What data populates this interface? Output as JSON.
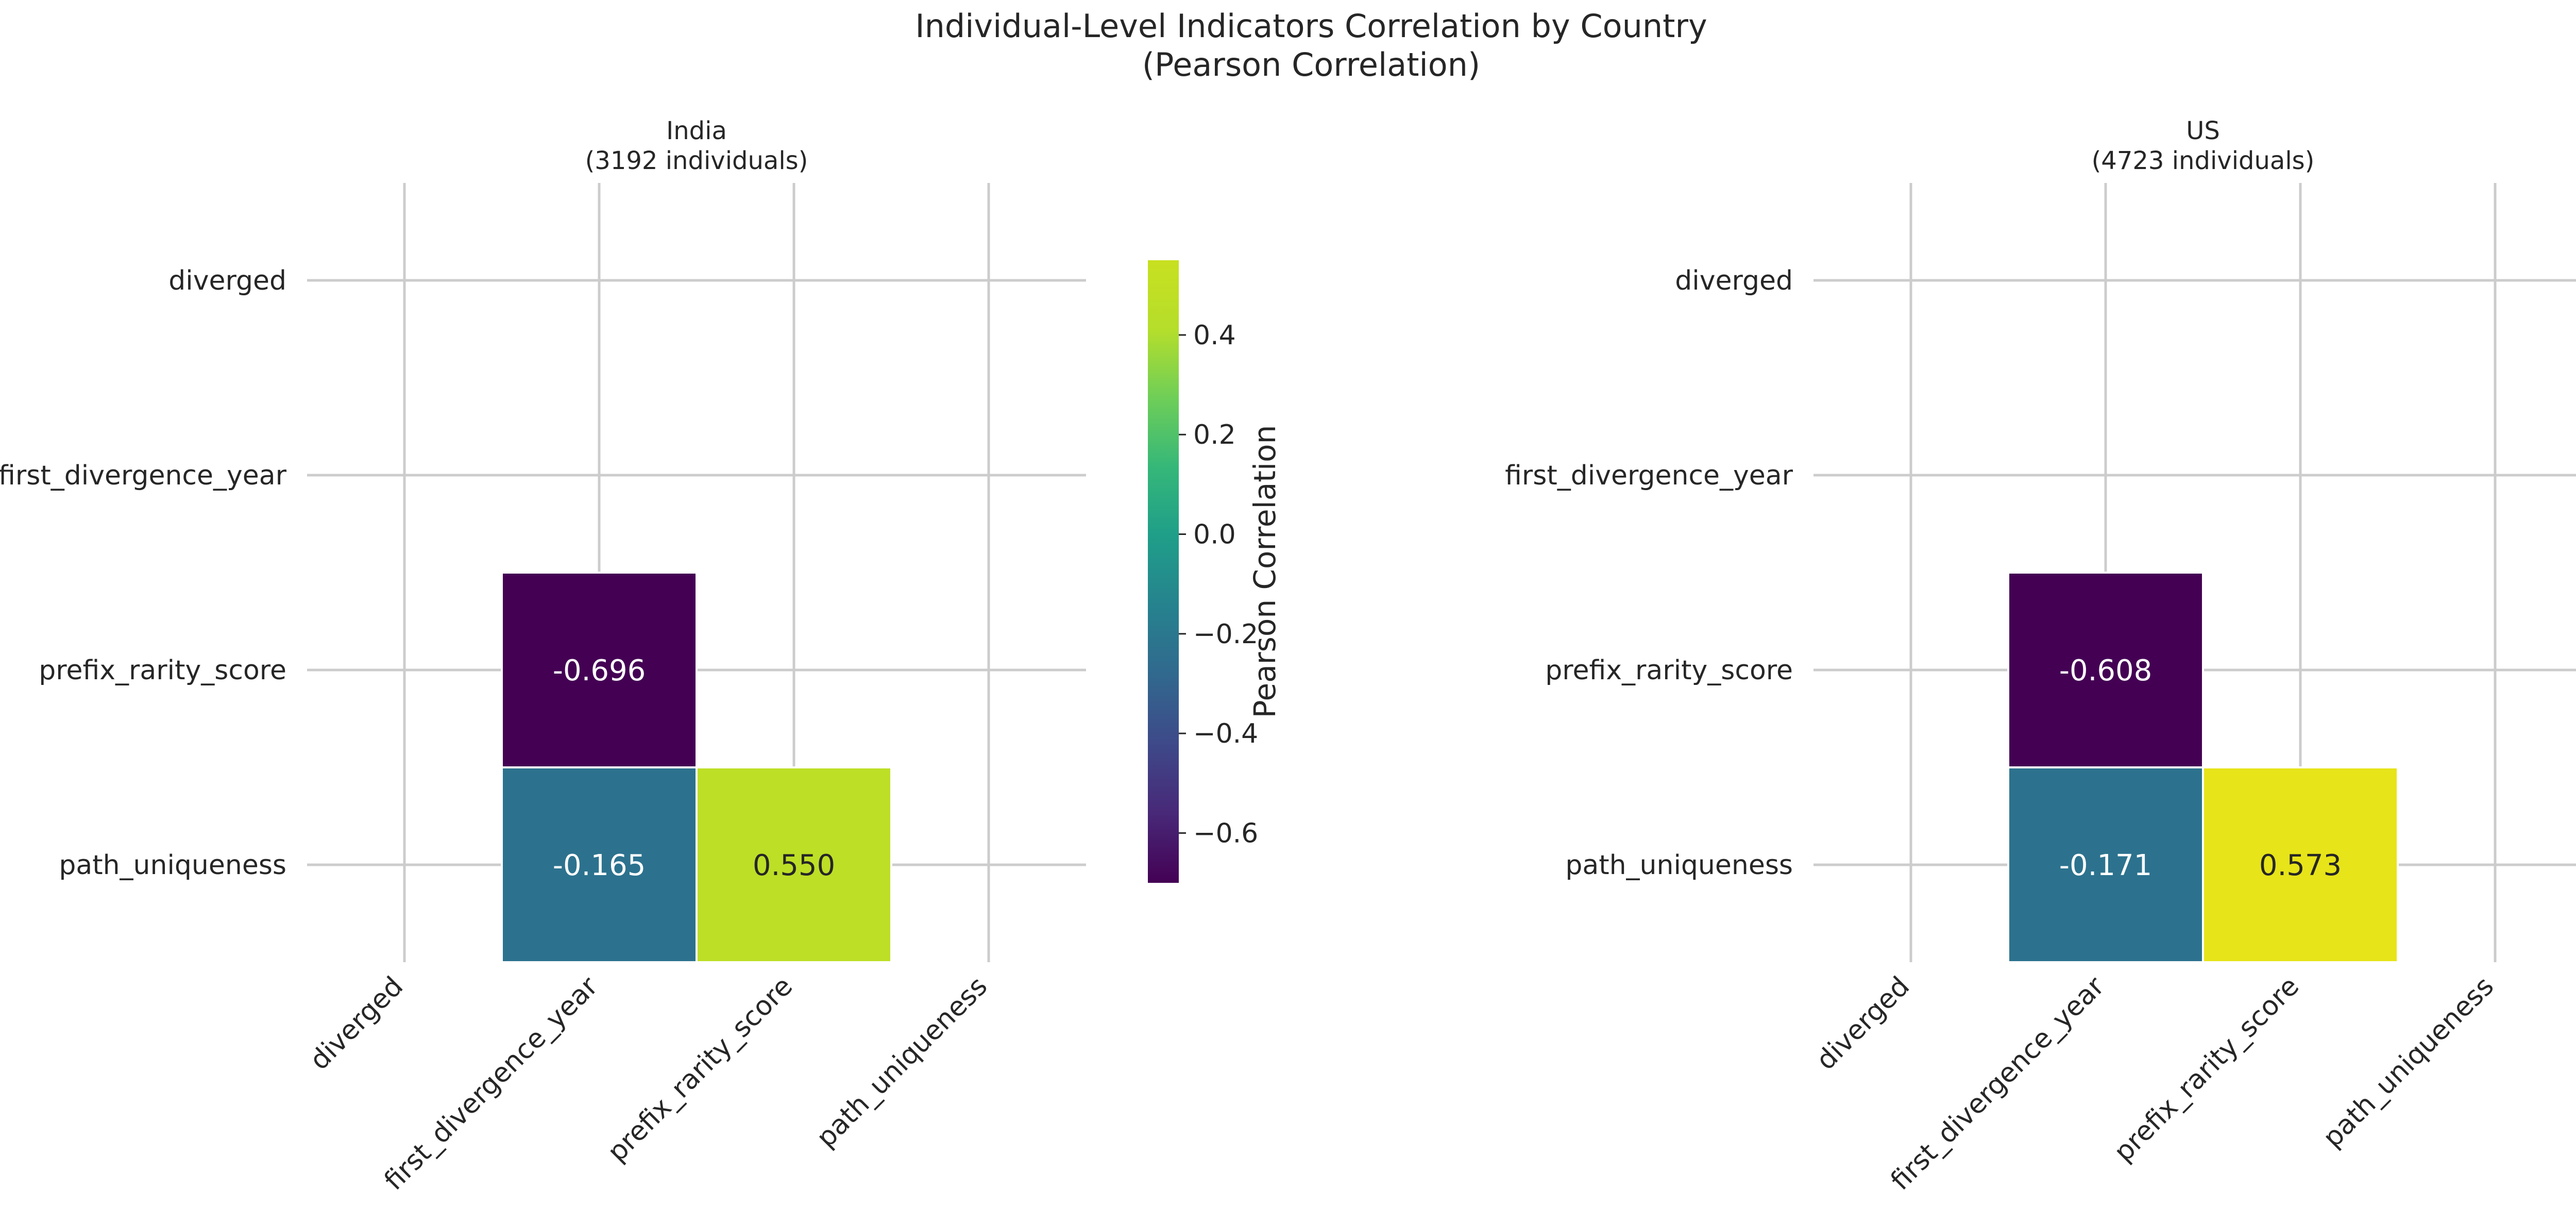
{
  "figure": {
    "title_line1": "Individual-Level Indicators Correlation by Country",
    "title_line2": "(Pearson Correlation)"
  },
  "colorbar": {
    "label": "Pearson Correlation",
    "min": -0.7,
    "max": 0.55,
    "ticks": [
      0.4,
      0.2,
      0.0,
      -0.2,
      -0.4,
      -0.6
    ],
    "tick_labels": [
      "0.4",
      "0.2",
      "0.0",
      "−0.2",
      "−0.4",
      "−0.6"
    ],
    "colormap": "viridis"
  },
  "chart_data": [
    {
      "type": "heatmap",
      "title_line1": "India",
      "title_line2": "(3192 individuals)",
      "variables": [
        "diverged",
        "first_divergence_year",
        "prefix_rarity_score",
        "path_uniqueness"
      ],
      "mask": "upper-triangle-and-diagonal",
      "grid": true,
      "cells": [
        {
          "row": "prefix_rarity_score",
          "col": "first_divergence_year",
          "value": -0.696,
          "label": "-0.696",
          "color": "#440154",
          "text_color": "#ffffff"
        },
        {
          "row": "path_uniqueness",
          "col": "first_divergence_year",
          "value": -0.165,
          "label": "-0.165",
          "color": "#2c728e",
          "text_color": "#ffffff"
        },
        {
          "row": "path_uniqueness",
          "col": "prefix_rarity_score",
          "value": 0.55,
          "label": "0.550",
          "color": "#bddf26",
          "text_color": "#262626"
        }
      ]
    },
    {
      "type": "heatmap",
      "title_line1": "US",
      "title_line2": "(4723 individuals)",
      "variables": [
        "diverged",
        "first_divergence_year",
        "prefix_rarity_score",
        "path_uniqueness"
      ],
      "mask": "upper-triangle-and-diagonal",
      "grid": true,
      "cells": [
        {
          "row": "prefix_rarity_score",
          "col": "first_divergence_year",
          "value": -0.608,
          "label": "-0.608",
          "color": "#440154",
          "text_color": "#ffffff"
        },
        {
          "row": "path_uniqueness",
          "col": "first_divergence_year",
          "value": -0.171,
          "label": "-0.171",
          "color": "#2c728e",
          "text_color": "#ffffff"
        },
        {
          "row": "path_uniqueness",
          "col": "prefix_rarity_score",
          "value": 0.573,
          "label": "0.573",
          "color": "#e7e419",
          "text_color": "#262626"
        }
      ]
    }
  ]
}
